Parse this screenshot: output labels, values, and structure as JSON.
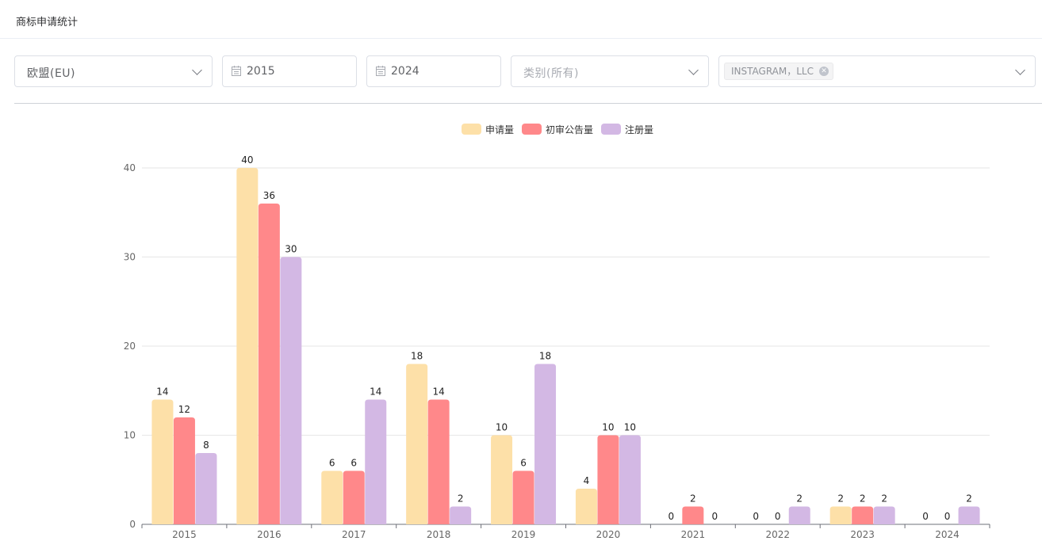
{
  "header": {
    "title": "商标申请统计"
  },
  "filters": {
    "region": "欧盟(EU)",
    "start_year": "2015",
    "end_year": "2024",
    "category_placeholder": "类别(所有)",
    "applicant_tag": "INSTAGRAM，LLC",
    "icons": {
      "dropdown": "chevron-down-icon",
      "date": "calendar-icon",
      "tag_close": "close-icon"
    }
  },
  "chart_data": {
    "type": "bar",
    "title": "",
    "xlabel": "",
    "ylabel": "",
    "categories": [
      "2015",
      "2016",
      "2017",
      "2018",
      "2019",
      "2020",
      "2021",
      "2022",
      "2023",
      "2024"
    ],
    "ylim": [
      0,
      40
    ],
    "yticks": [
      0,
      10,
      20,
      30,
      40
    ],
    "grid": true,
    "legend_position": "top-center",
    "data_labels": true,
    "series": [
      {
        "name": "申请量",
        "color": "#fde0a8",
        "values": [
          14,
          40,
          6,
          18,
          10,
          4,
          0,
          0,
          2,
          0
        ]
      },
      {
        "name": "初审公告量",
        "color": "#ff888a",
        "values": [
          12,
          36,
          6,
          14,
          6,
          10,
          2,
          0,
          2,
          0
        ]
      },
      {
        "name": "注册量",
        "color": "#d3b8e4",
        "values": [
          8,
          30,
          14,
          2,
          18,
          10,
          0,
          2,
          2,
          2
        ]
      }
    ]
  }
}
